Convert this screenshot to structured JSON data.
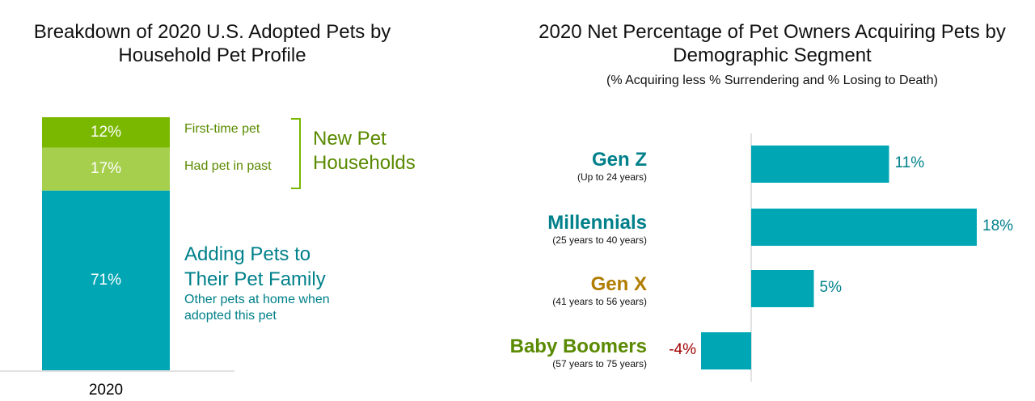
{
  "colors": {
    "dark_green": "#7ab800",
    "light_green": "#a6cf4d",
    "teal": "#00a6b4",
    "teal_text": "#00808a",
    "olive_text": "#5a8a00",
    "gold_text": "#b07d00",
    "negative_text": "#a00000"
  },
  "chart_data": [
    {
      "type": "bar",
      "stacked": true,
      "title": "Breakdown of 2020 U.S. Adopted Pets by Household Pet Profile",
      "categories": [
        "2020"
      ],
      "series": [
        {
          "name": "First-time pet",
          "values": [
            12
          ],
          "label": "12%"
        },
        {
          "name": "Had pet in past",
          "values": [
            17
          ],
          "label": "17%"
        },
        {
          "name": "Other pets at home when adopted this pet",
          "values": [
            71
          ],
          "label": "71%"
        }
      ],
      "annotations": {
        "new_households": "New Pet Households",
        "adding_pets": "Adding Pets to Their Pet Family",
        "adding_pets_sub": "Other pets at home when adopted this pet"
      },
      "ylim": [
        0,
        100
      ]
    },
    {
      "type": "bar",
      "orientation": "horizontal",
      "title": "2020 Net Percentage of Pet Owners Acquiring Pets by Demographic Segment",
      "subtitle": "(% Acquiring less % Surrendering and % Losing to Death)",
      "categories": [
        {
          "name": "Gen Z",
          "sub": "(Up to 24 years)"
        },
        {
          "name": "Millennials",
          "sub": "(25 years to 40 years)"
        },
        {
          "name": "Gen X",
          "sub": "(41 years to 56 years)"
        },
        {
          "name": "Baby Boomers",
          "sub": "(57 years to 75 years)"
        }
      ],
      "values": [
        11,
        18,
        5,
        -4
      ],
      "labels": [
        "11%",
        "18%",
        "5%",
        "-4%"
      ],
      "name_colors": [
        "#00808a",
        "#00808a",
        "#b07d00",
        "#5a8a00"
      ],
      "xlim": [
        -4,
        18
      ]
    }
  ]
}
